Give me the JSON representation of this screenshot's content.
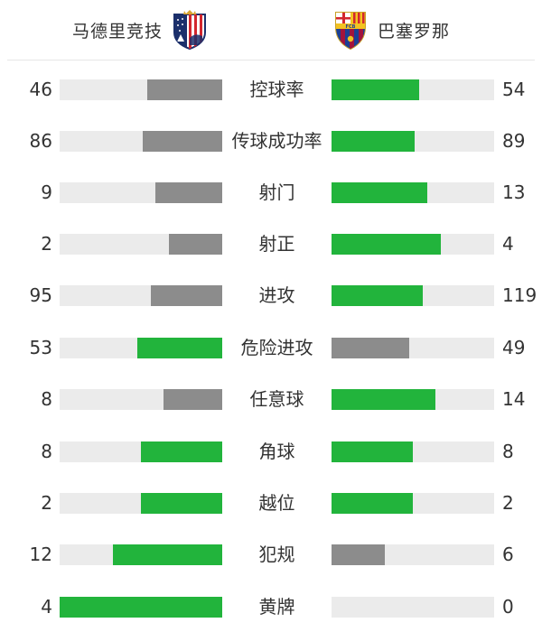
{
  "teams": {
    "home": {
      "name": "马德里竞技",
      "crest": "atletico-madrid-crest"
    },
    "away": {
      "name": "巴塞罗那",
      "crest": "fc-barcelona-crest"
    }
  },
  "colors": {
    "leading": "#22b43c",
    "trailing": "#8c8c8c",
    "track": "#ebebeb"
  },
  "stats": [
    {
      "label": "控球率",
      "home": "46",
      "away": "54",
      "home_fill": 0.46,
      "away_fill": 0.54,
      "home_color": "trailing",
      "away_color": "leading"
    },
    {
      "label": "传球成功率",
      "home": "86",
      "away": "89",
      "home_fill": 0.49,
      "away_fill": 0.51,
      "home_color": "trailing",
      "away_color": "leading"
    },
    {
      "label": "射门",
      "home": "9",
      "away": "13",
      "home_fill": 0.41,
      "away_fill": 0.59,
      "home_color": "trailing",
      "away_color": "leading"
    },
    {
      "label": "射正",
      "home": "2",
      "away": "4",
      "home_fill": 0.33,
      "away_fill": 0.67,
      "home_color": "trailing",
      "away_color": "leading"
    },
    {
      "label": "进攻",
      "home": "95",
      "away": "119",
      "home_fill": 0.44,
      "away_fill": 0.56,
      "home_color": "trailing",
      "away_color": "leading"
    },
    {
      "label": "危险进攻",
      "home": "53",
      "away": "49",
      "home_fill": 0.52,
      "away_fill": 0.48,
      "home_color": "leading",
      "away_color": "trailing"
    },
    {
      "label": "任意球",
      "home": "8",
      "away": "14",
      "home_fill": 0.36,
      "away_fill": 0.64,
      "home_color": "trailing",
      "away_color": "leading"
    },
    {
      "label": "角球",
      "home": "8",
      "away": "8",
      "home_fill": 0.5,
      "away_fill": 0.5,
      "home_color": "leading",
      "away_color": "leading"
    },
    {
      "label": "越位",
      "home": "2",
      "away": "2",
      "home_fill": 0.5,
      "away_fill": 0.5,
      "home_color": "leading",
      "away_color": "leading"
    },
    {
      "label": "犯规",
      "home": "12",
      "away": "6",
      "home_fill": 0.67,
      "away_fill": 0.33,
      "home_color": "leading",
      "away_color": "trailing"
    },
    {
      "label": "黄牌",
      "home": "4",
      "away": "0",
      "home_fill": 1.0,
      "away_fill": 0.0,
      "home_color": "leading",
      "away_color": "trailing"
    }
  ]
}
